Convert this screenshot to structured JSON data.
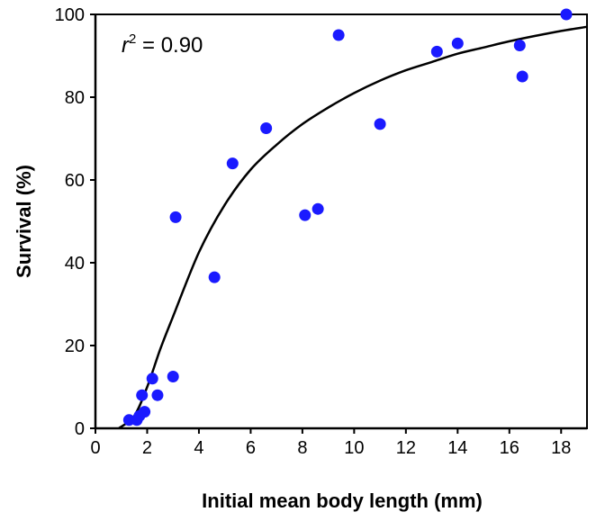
{
  "chart_data": {
    "type": "scatter",
    "xlabel": "Initial mean body length (mm)",
    "ylabel": "Survival (%)",
    "xlim": [
      0,
      19
    ],
    "ylim": [
      0,
      100
    ],
    "xticks": [
      0,
      2,
      4,
      6,
      8,
      10,
      12,
      14,
      16,
      18
    ],
    "yticks": [
      0,
      20,
      40,
      60,
      80,
      100
    ],
    "grid": false,
    "legend": "none",
    "point_color": "#1a1aff",
    "curve_color": "#000000",
    "annotation": {
      "symbol": "r",
      "superscript": "2",
      "text": " = 0.90",
      "value": 0.9
    },
    "series": [
      {
        "points": [
          {
            "x": 1.3,
            "y": 2
          },
          {
            "x": 1.6,
            "y": 2
          },
          {
            "x": 1.7,
            "y": 3
          },
          {
            "x": 1.8,
            "y": 8
          },
          {
            "x": 1.9,
            "y": 4
          },
          {
            "x": 2.2,
            "y": 12
          },
          {
            "x": 2.4,
            "y": 8
          },
          {
            "x": 3.0,
            "y": 12.5
          },
          {
            "x": 3.1,
            "y": 51
          },
          {
            "x": 4.6,
            "y": 36.5
          },
          {
            "x": 5.3,
            "y": 64
          },
          {
            "x": 6.6,
            "y": 72.5
          },
          {
            "x": 8.1,
            "y": 51.5
          },
          {
            "x": 8.6,
            "y": 53
          },
          {
            "x": 9.4,
            "y": 95
          },
          {
            "x": 11.0,
            "y": 73.5
          },
          {
            "x": 13.2,
            "y": 91
          },
          {
            "x": 14.0,
            "y": 93
          },
          {
            "x": 16.4,
            "y": 92.5
          },
          {
            "x": 16.5,
            "y": 85
          },
          {
            "x": 18.2,
            "y": 100
          }
        ]
      }
    ],
    "fit_curve": [
      {
        "x": 0.9,
        "y": 0
      },
      {
        "x": 1.5,
        "y": 3
      },
      {
        "x": 2.0,
        "y": 10
      },
      {
        "x": 2.5,
        "y": 19
      },
      {
        "x": 3.0,
        "y": 27
      },
      {
        "x": 4.0,
        "y": 42.5
      },
      {
        "x": 5.0,
        "y": 54
      },
      {
        "x": 6.0,
        "y": 62.5
      },
      {
        "x": 7.0,
        "y": 68.5
      },
      {
        "x": 8.0,
        "y": 73.5
      },
      {
        "x": 9.0,
        "y": 77.5
      },
      {
        "x": 10.0,
        "y": 81
      },
      {
        "x": 11.0,
        "y": 84
      },
      {
        "x": 12.0,
        "y": 86.5
      },
      {
        "x": 13.0,
        "y": 88.5
      },
      {
        "x": 14.0,
        "y": 90.5
      },
      {
        "x": 15.0,
        "y": 92
      },
      {
        "x": 16.0,
        "y": 93.5
      },
      {
        "x": 17.0,
        "y": 94.8
      },
      {
        "x": 18.0,
        "y": 96
      },
      {
        "x": 19.0,
        "y": 97
      }
    ]
  }
}
